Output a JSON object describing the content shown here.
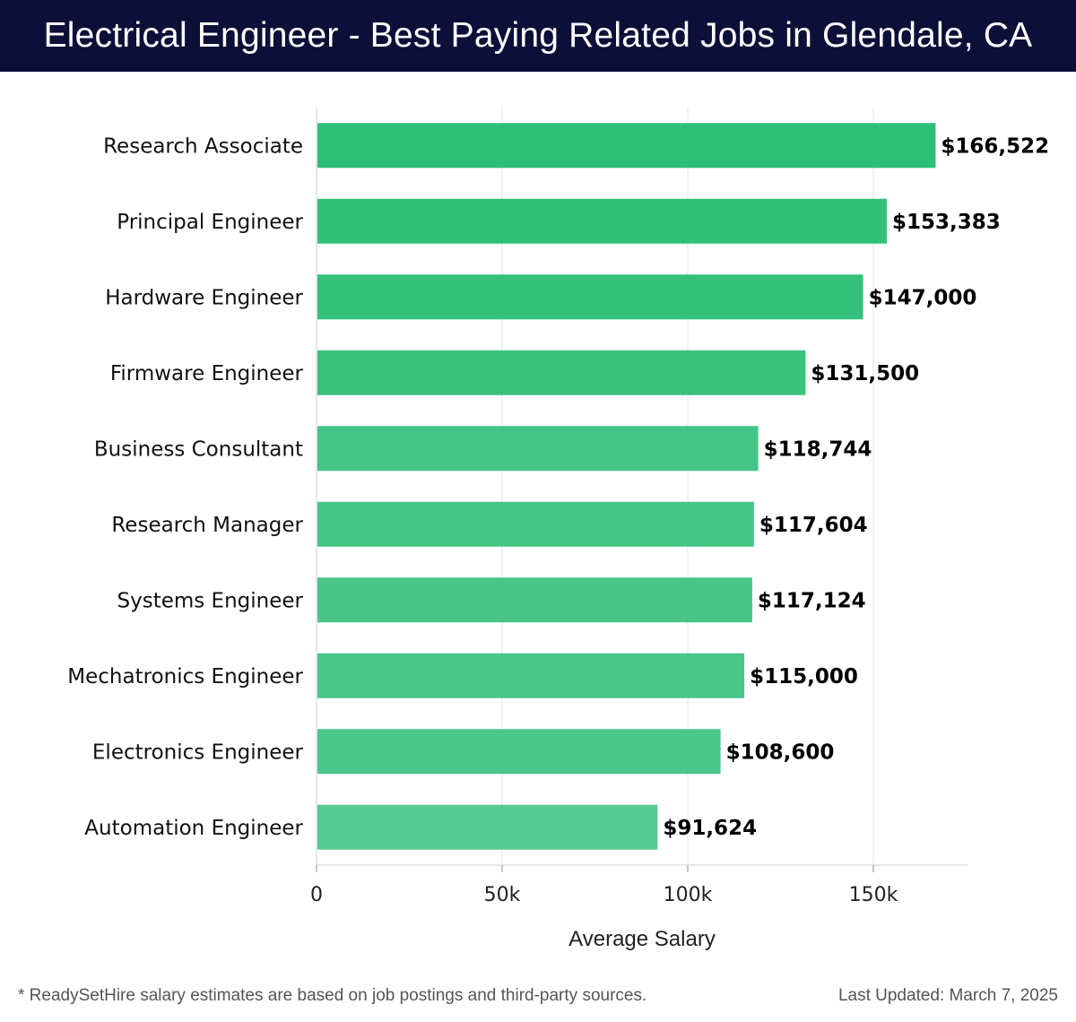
{
  "header": {
    "title": "Electrical Engineer - Best Paying Related Jobs in Glendale, CA"
  },
  "chart_data": {
    "type": "bar",
    "orientation": "horizontal",
    "title": "Electrical Engineer - Best Paying Related Jobs in Glendale, CA",
    "xlabel": "Average Salary",
    "ylabel": "",
    "xlim": [
      0,
      175000
    ],
    "grid": true,
    "xticks": [
      {
        "value": 0,
        "label": "0"
      },
      {
        "value": 50000,
        "label": "50k"
      },
      {
        "value": 100000,
        "label": "100k"
      },
      {
        "value": 150000,
        "label": "150k"
      }
    ],
    "categories": [
      "Research Associate",
      "Principal Engineer",
      "Hardware Engineer",
      "Firmware Engineer",
      "Business Consultant",
      "Research Manager",
      "Systems Engineer",
      "Mechatronics Engineer",
      "Electronics Engineer",
      "Automation Engineer"
    ],
    "values": [
      166522,
      153383,
      147000,
      131500,
      118744,
      117604,
      117124,
      115000,
      108600,
      91624
    ],
    "value_labels": [
      "$166,522",
      "$153,383",
      "$147,000",
      "$131,500",
      "$118,744",
      "$117,604",
      "$117,124",
      "$115,000",
      "$108,600",
      "$91,624"
    ],
    "bar_colors": [
      "#2dbe78",
      "#30c07a",
      "#33c17c",
      "#38c27e",
      "#44c486",
      "#46c588",
      "#48c589",
      "#4ac68b",
      "#4cc78c",
      "#58cb94"
    ]
  },
  "footer": {
    "note": "* ReadySetHire salary estimates are based on job postings and third-party sources.",
    "last_updated": "Last Updated: March 7, 2025"
  }
}
